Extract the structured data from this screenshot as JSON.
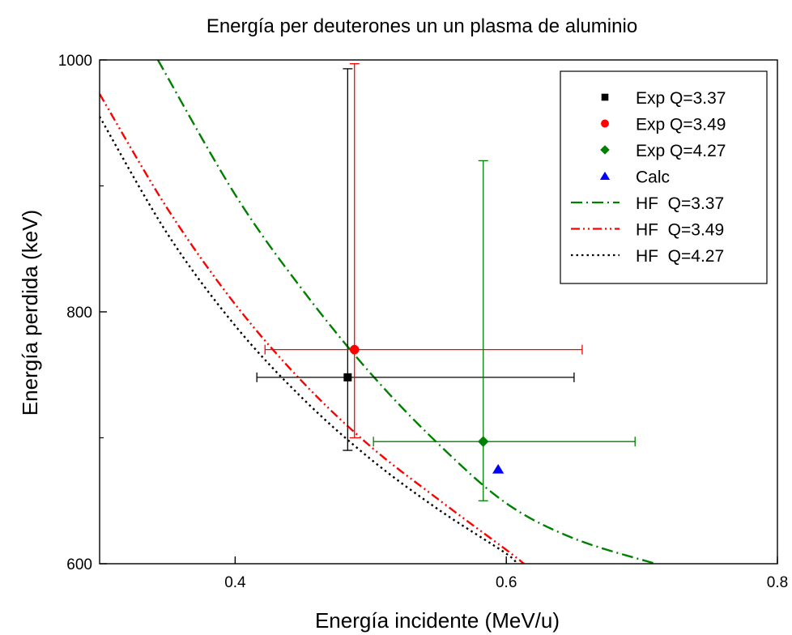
{
  "chart_data": {
    "type": "scatter",
    "title": "Energía per deuterones un un plasma de aluminio",
    "xlabel": "Energía incidente (MeV/u)",
    "ylabel": "Energía perdida (keV)",
    "xlim": [
      0.3,
      0.8
    ],
    "ylim": [
      600,
      1000
    ],
    "x_ticks": [
      {
        "value": 0.4,
        "label": "0.4"
      },
      {
        "value": 0.6,
        "label": "0.6"
      },
      {
        "value": 0.8,
        "label": "0.8"
      }
    ],
    "y_ticks": [
      {
        "value": 600,
        "label": "600"
      },
      {
        "value": 800,
        "label": "800"
      },
      {
        "value": 1000,
        "label": "1000"
      }
    ],
    "grid": false,
    "legend_position": "top-right",
    "points": [
      {
        "name": "Exp Q=3.37",
        "marker": "square",
        "color": "#000000",
        "x": 0.483,
        "y": 748,
        "xerr": [
          0.416,
          0.65
        ],
        "yerr": [
          690,
          993
        ]
      },
      {
        "name": "Exp Q=3.49",
        "marker": "circle",
        "color": "#ff0000",
        "x": 0.488,
        "y": 770,
        "xerr": [
          0.422,
          0.656
        ],
        "yerr": [
          700,
          997
        ]
      },
      {
        "name": "Exp Q=4.27",
        "marker": "diamond",
        "color": "#008000",
        "x": 0.583,
        "y": 697,
        "xerr": [
          0.502,
          0.695
        ],
        "yerr": [
          650,
          920
        ]
      },
      {
        "name": "Calc",
        "marker": "triangle",
        "color": "#0000ff",
        "x": 0.594,
        "y": 675
      }
    ],
    "curves": [
      {
        "name": "HF  Q=3.37",
        "dash": "dashdot",
        "color": "#008000",
        "x": [
          0.343,
          0.4,
          0.45,
          0.5,
          0.55,
          0.6,
          0.65,
          0.71
        ],
        "y": [
          1000,
          893,
          817,
          751,
          695,
          648,
          620,
          600
        ]
      },
      {
        "name": "HF  Q=3.49",
        "dash": "dashdotdot",
        "color": "#ff0000",
        "x": [
          0.3,
          0.35,
          0.4,
          0.45,
          0.5,
          0.55,
          0.6,
          0.613
        ],
        "y": [
          973,
          882,
          806,
          744,
          693,
          651,
          611,
          600
        ]
      },
      {
        "name": "HF  Q=4.27",
        "dash": "dotted",
        "color": "#000000",
        "x": [
          0.3,
          0.35,
          0.4,
          0.45,
          0.5,
          0.55,
          0.6,
          0.607
        ],
        "y": [
          955,
          862,
          789,
          731,
          683,
          643,
          608,
          600
        ]
      }
    ]
  }
}
